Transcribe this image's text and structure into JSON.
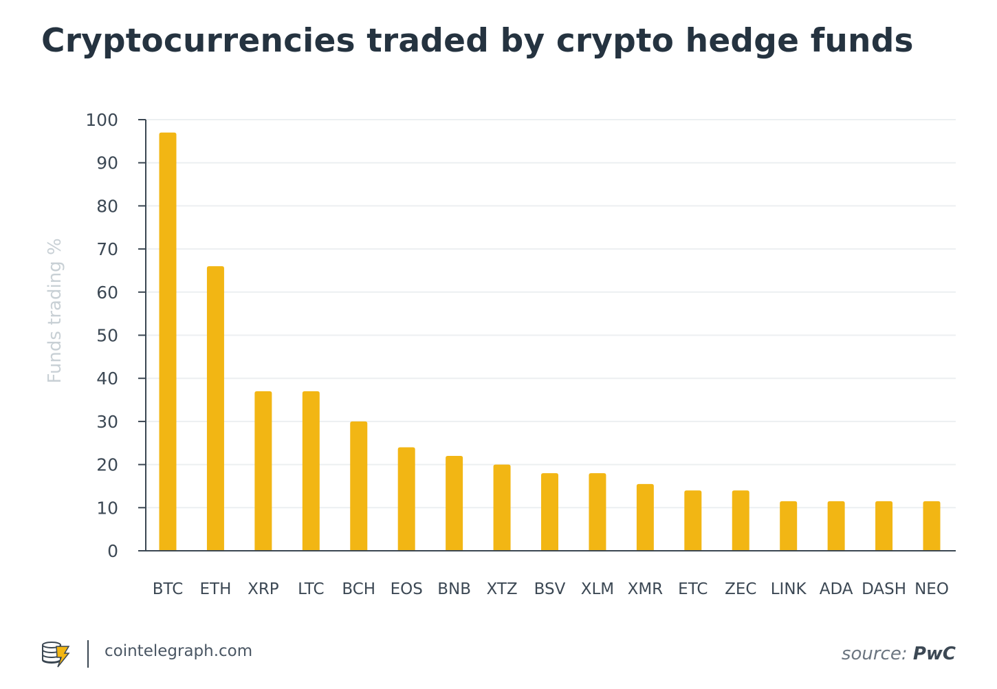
{
  "chart_data": {
    "type": "bar",
    "title": "Cryptocurrencies traded by crypto hedge funds",
    "xlabel": "",
    "ylabel": "Funds trading %",
    "ylim": [
      0,
      100
    ],
    "yticks": [
      0,
      10,
      20,
      30,
      40,
      50,
      60,
      70,
      80,
      90,
      100
    ],
    "grid": true,
    "categories": [
      "BTC",
      "ETH",
      "XRP",
      "LTC",
      "BCH",
      "EOS",
      "BNB",
      "XTZ",
      "BSV",
      "XLM",
      "XMR",
      "ETC",
      "ZEC",
      "LINK",
      "ADA",
      "DASH",
      "NEO"
    ],
    "values": [
      97,
      66,
      37,
      37,
      30,
      24,
      22,
      20,
      18,
      18,
      15.5,
      14,
      14,
      11.5,
      11.5,
      11.5,
      11.5
    ],
    "bar_color": "#F2B614"
  },
  "footer": {
    "site": "cointelegraph.com",
    "source_prefix": "source: ",
    "source_name": "PwC"
  },
  "colors": {
    "title": "#253340",
    "axis": "#3a4651",
    "grid": "#eceff1",
    "ylabel": "#c8d0d5"
  }
}
